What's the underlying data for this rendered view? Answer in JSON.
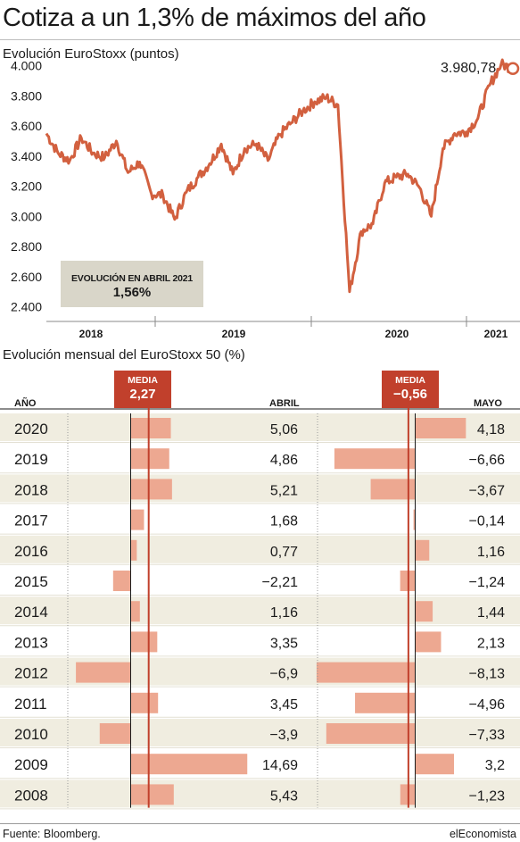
{
  "title": "Cotiza a un 1,3% de máximos del año",
  "line_chart": {
    "subtitle": "Evolución EuroStoxx (puntos)",
    "last_value_label": "3.980,78",
    "april_box_label": "EVOLUCIÓN EN ABRIL 2021",
    "april_box_value": "1,56%",
    "y_ticks": [
      "4.000",
      "3.800",
      "3.600",
      "3.400",
      "3.200",
      "3.000",
      "2.800",
      "2.600",
      "2.400"
    ],
    "x_ticks": [
      "2018",
      "2019",
      "2020",
      "2021"
    ]
  },
  "bar_chart": {
    "subtitle": "Evolución mensual del EuroStoxx 50 (%)",
    "col_year": "AÑO",
    "col_april": "ABRIL",
    "col_may": "MAYO",
    "media_label": "MEDIA",
    "media_april": "2,27",
    "media_may": "−0,56",
    "rows": [
      {
        "year": "2020",
        "april": "5,06",
        "may": "4,18"
      },
      {
        "year": "2019",
        "april": "4,86",
        "may": "−6,66"
      },
      {
        "year": "2018",
        "april": "5,21",
        "may": "−3,67"
      },
      {
        "year": "2017",
        "april": "1,68",
        "may": "−0,14"
      },
      {
        "year": "2016",
        "april": "0,77",
        "may": "1,16"
      },
      {
        "year": "2015",
        "april": "−2,21",
        "may": "−1,24"
      },
      {
        "year": "2014",
        "april": "1,16",
        "may": "1,44"
      },
      {
        "year": "2013",
        "april": "3,35",
        "may": "2,13"
      },
      {
        "year": "2012",
        "april": "−6,9",
        "may": "−8,13"
      },
      {
        "year": "2011",
        "april": "3,45",
        "may": "−4,96"
      },
      {
        "year": "2010",
        "april": "−3,9",
        "may": "−7,33"
      },
      {
        "year": "2009",
        "april": "14,69",
        "may": "3,2"
      },
      {
        "year": "2008",
        "april": "5,43",
        "may": "−1,23"
      }
    ]
  },
  "source": "Fuente: Bloomberg.",
  "brand": "elEconomista",
  "colors": {
    "line": "#d2603f",
    "bar": "#eda891",
    "media": "#c1402c",
    "stripe": "#f0ede0",
    "box": "#d9d6c9"
  },
  "chart_data": [
    {
      "type": "line",
      "title": "Evolución EuroStoxx (puntos)",
      "ylim": [
        2350,
        4080
      ],
      "x_range": [
        "2018-01",
        "2021-05"
      ],
      "grid": false,
      "series": [
        {
          "x": [
            "2018-01",
            "2018-02",
            "2018-03",
            "2018-04",
            "2018-05",
            "2018-06",
            "2018-07",
            "2018-08",
            "2018-09",
            "2018-10",
            "2018-11",
            "2018-12",
            "2019-01",
            "2019-02",
            "2019-03",
            "2019-04",
            "2019-05",
            "2019-06",
            "2019-07",
            "2019-08",
            "2019-09",
            "2019-10",
            "2019-11",
            "2019-12",
            "2020-01",
            "2020-02",
            "2020-03",
            "2020-04",
            "2020-05",
            "2020-06",
            "2020-07",
            "2020-08",
            "2020-09",
            "2020-10",
            "2020-11",
            "2020-12",
            "2021-01",
            "2021-02",
            "2021-03",
            "2021-04",
            "2021-05"
          ],
          "values": [
            3550,
            3420,
            3370,
            3520,
            3420,
            3390,
            3500,
            3290,
            3360,
            3150,
            3140,
            2980,
            3160,
            3260,
            3350,
            3480,
            3280,
            3450,
            3480,
            3370,
            3540,
            3620,
            3700,
            3760,
            3790,
            3740,
            2500,
            2900,
            2950,
            3220,
            3260,
            3280,
            3190,
            3000,
            3450,
            3550,
            3560,
            3650,
            3870,
            4010,
            3981
          ]
        }
      ]
    },
    {
      "type": "bar",
      "title": "Evolución mensual del EuroStoxx 50 (%)",
      "categories": [
        "2020",
        "2019",
        "2018",
        "2017",
        "2016",
        "2015",
        "2014",
        "2013",
        "2012",
        "2011",
        "2010",
        "2009",
        "2008"
      ],
      "series": [
        {
          "name": "ABRIL",
          "values": [
            5.06,
            4.86,
            5.21,
            1.68,
            0.77,
            -2.21,
            1.16,
            3.35,
            -6.9,
            3.45,
            -3.9,
            14.69,
            5.43
          ],
          "mean": 2.27
        },
        {
          "name": "MAYO",
          "values": [
            4.18,
            -6.66,
            -3.67,
            -0.14,
            1.16,
            -1.24,
            1.44,
            2.13,
            -8.13,
            -4.96,
            -7.33,
            3.2,
            -1.23
          ],
          "mean": -0.56
        }
      ]
    }
  ]
}
